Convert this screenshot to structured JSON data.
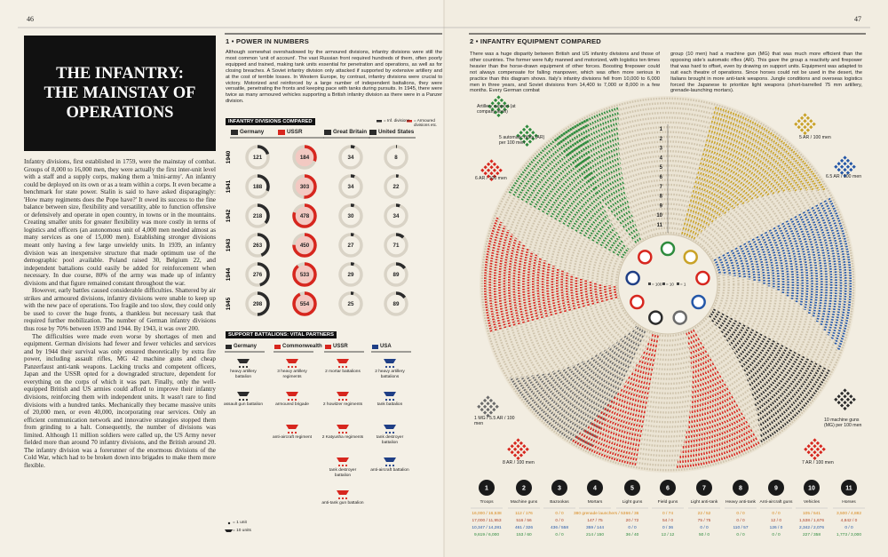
{
  "left_page": {
    "page_number": "46",
    "title": [
      "THE INFANTRY:",
      "THE MAINSTAY OF",
      "OPERATIONS"
    ],
    "body": [
      "Infantry divisions, first established in 1759, were the mainstay of combat. Groups of 8,000 to 16,000 men, they were actually the first inter-unit level with a staff and a supply corps, making them a 'mini-army'. An infantry could be deployed on its own or as a team within a corps. It even became a benchmark for state power. Stalin is said to have asked disparagingly: 'How many regiments does the Pope have?' It owed its success to the fine balance between size, flexibility and versatility, able to function offensive or defensively and operate in open country, in towns or in the mountains. Creating smaller units for greater flexibility was more costly in terms of logistics and officers (an autonomous unit of 4,000 men needed almost as many services as one of 15,000 men). Establishing stronger divisions meant only having a few large unwieldy units. In 1939, an infantry division was an inexpensive structure that made optimum use of the demographic pool available. Poland raised 30, Belgium 22, and independent battalions could easily be added for reinforcement when necessary. In due course, 80% of the army was made up of infantry divisions and that figure remained constant throughout the war.",
      "However, early battles caused considerable difficulties. Shattered by air strikes and armoured divisions, infantry divisions were unable to keep up with the new pace of operations. Too fragile and too slow, they could only be used to cover the huge fronts, a thankless but necessary task that required further mobilization. The number of German infantry divisions thus rose by 70% between 1939 and 1944. By 1943, it was over 200.",
      "The difficulties were made even worse by shortages of men and equipment. German divisions had fewer and fewer vehicles and services and by 1944 their survival was only ensured theoretically by extra fire power, including assault rifles, MG 42 machine guns and cheap Panzerfaust anti-tank weapons. Lacking trucks and competent officers, Japan and the USSR opted for a downgraded structure, dependent for everything on the corps of which it was part. Finally, only the well-equipped British and US armies could afford to improve their infantry divisions, reinforcing them with independent units. It wasn't rare to find divisions with a hundred tanks. Mechanically they became massive units of 20,000 men, or even 40,000, incorporating rear services. Only an efficient communication network and innovative strategies stopped them from grinding to a halt. Consequently, the number of divisions was limited. Although 11 million soldiers were called up, the US Army never fielded more than around 70 infantry divisions, and the British around 20. The infantry division was a forerunner of the enormous divisions of the Cold War, which had to be broken down into brigades to make them more flexible."
    ]
  },
  "power_in_numbers": {
    "heading": "1 • POWER IN NUMBERS",
    "text": "Although somewhat overshadowed by the armoured divisions, infantry divisions were still the most common 'unit of account'. The vast Russian front required hundreds of them, often poorly equipped and trained, making tank units essential for penetration and operations, as well as for closing breaches. A Soviet infantry division only attacked if supported by extensive artillery and at the cost of terrible losses. In Western Europe, by contrast, infantry divisions were crucial to victory. Motorized and reinforced by a large number of independent battalions, they were versatile, penetrating the fronts and keeping pace with tanks during pursuits. In 1945, there were twice as many armoured vehicles supporting a British infantry division as there were in a Panzer division.",
    "divisions": {
      "heading": "INFANTRY DIVISIONS COMPARED",
      "legend": [
        "= Inf. divisions",
        "= Armoured divisions etc."
      ],
      "countries": [
        "Germany",
        "USSR",
        "Great Britain",
        "United States"
      ],
      "colors": [
        "#2b2b2b",
        "#d7261e",
        "#2b2b2b",
        "#2b2b2b"
      ],
      "years": [
        "1940",
        "1941",
        "1942",
        "1943",
        "1944",
        "1945"
      ],
      "values": [
        [
          121,
          184,
          34,
          8
        ],
        [
          188,
          303,
          34,
          22
        ],
        [
          218,
          478,
          30,
          34
        ],
        [
          263,
          450,
          27,
          71
        ],
        [
          276,
          533,
          29,
          89
        ],
        [
          298,
          554,
          25,
          89
        ]
      ]
    }
  },
  "support": {
    "heading": "SUPPORT BATTALIONS: VITAL PARTNERS",
    "columns": [
      {
        "name": "Germany",
        "color": "#2b2b2b",
        "units": [
          "heavy artillery battalion",
          "assault gun battalion"
        ]
      },
      {
        "name": "Commonwealth",
        "color": "#d7261e",
        "units": [
          "3 heavy artillery regiments",
          "armoured brigade",
          "anti-aircraft regiment"
        ]
      },
      {
        "name": "USSR",
        "color": "#d7261e",
        "units": [
          "2 mortar battalions",
          "2 howitzer regiments",
          "2 Katyusha regiments",
          "tank destroyer battalion",
          "anti-tank gun battalion"
        ]
      },
      {
        "name": "USA",
        "color": "#1f3f86",
        "units": [
          "2 heavy artillery battalions",
          "tank battalion",
          "tank destroyer battalion",
          "anti-aircraft battalion"
        ]
      }
    ],
    "legend": [
      "= 1 unit",
      "= 10 units"
    ]
  },
  "right_page": {
    "page_number": "47",
    "heading": "2 • INFANTRY EQUIPMENT COMPARED",
    "text": [
      "There was a huge disparity between British and US infantry divisions and those of other countries. The former were fully manned and motorized, with logistics ten times heavier than the horse-drawn equipment of other forces. Boosting firepower could not always compensate for falling manpower, which was often more serious in practice than this diagram shows. Italy's infantry divisions fell from 10,000 to 6,000 men in three years, and Soviet divisions from 14,400 to 7,000 or 8,000 in a few months. Every German combat",
      "group (10 men) had a machine gun (MG) that was much more efficient than the opposing side's automatic rifles (AR). This gave the group a reactivity and firepower that was hard to offset, even by drawing on support units. Equipment was adapted to suit each theatre of operations. Since horses could not be used in the desert, the Italians brought in more anti-tank weapons. Jungle conditions and overseas logistics forced the Japanese to prioritize light weapons (short-barrelled 75 mm artillery, grenade-launching mortars)."
    ],
    "diagram": {
      "sectors": [
        {
          "label": "Artillery support (at company level)",
          "color": "#2e8b3d"
        },
        {
          "label": "5 automatic rifles (AR) per 100 men",
          "color": "#2e8b3d"
        },
        {
          "label": "6 AR / 100 men",
          "color": "#d7261e"
        },
        {
          "label": "5 AR / 100 men",
          "color": "#c9a227"
        },
        {
          "label": "6.5 AR / 100 men",
          "color": "#2457a8"
        },
        {
          "label": "1 MG / 5.5 AR / 100 men",
          "color": "#6b6b6b"
        },
        {
          "label": "10 machine guns (MG) per 100 men",
          "color": "#2b2b2b"
        },
        {
          "label": "8 AR / 100 men",
          "color": "#d7261e"
        },
        {
          "label": "7 AR / 100 men",
          "color": "#d7261e"
        }
      ],
      "rings": [
        "1",
        "2",
        "3",
        "4",
        "5",
        "6",
        "7",
        "8",
        "9",
        "10",
        "11"
      ],
      "center_legend": [
        "= 100",
        "= 10",
        "= 1"
      ]
    },
    "equipment": {
      "row_colors": [
        "#d98a1f",
        "#b0442c",
        "#2457a8",
        "#2e8b3d"
      ],
      "items": [
        {
          "number": "1",
          "label": "Troops",
          "figures": [
            "16,000 / 16,538",
            "17,000 / 11,953",
            "10,347 / 14,281",
            "9,619 / 6,000"
          ]
        },
        {
          "number": "2",
          "label": "Machine guns",
          "figures": [
            "112 / 176",
            "516 / 56",
            "461 / 326",
            "153 / 60"
          ]
        },
        {
          "number": "3",
          "label": "Bazookas",
          "figures": [
            "0 / 0",
            "0 / 0",
            "436 / 558",
            "0 / 0"
          ]
        },
        {
          "number": "4",
          "label": "Mortars",
          "figures": [
            "380 grenade launchers / 53",
            "147 / 75",
            "359 / 144",
            "214 / 150"
          ]
        },
        {
          "number": "5",
          "label": "Light guns",
          "figures": [
            "66 / 36",
            "20 / 72",
            "0 / 0",
            "36 / 40"
          ]
        },
        {
          "number": "6",
          "label": "Field guns",
          "figures": [
            "0 / 74",
            "54 / 0",
            "0 / 36",
            "12 / 12"
          ]
        },
        {
          "number": "7",
          "label": "Light anti-tank",
          "figures": [
            "22 / 52",
            "75 / 75",
            "0 / 0",
            "50 / 0"
          ]
        },
        {
          "number": "8",
          "label": "Heavy anti-tank",
          "figures": [
            "0 / 0",
            "0 / 0",
            "110 / 57",
            "0 / 0"
          ]
        },
        {
          "number": "9",
          "label": "Anti-aircraft guns",
          "figures": [
            "0 / 0",
            "12 / 0",
            "126 / 0",
            "0 / 0"
          ]
        },
        {
          "number": "10",
          "label": "Vehicles",
          "figures": [
            "105 / 541",
            "1,538 / 1,676",
            "2,342 / 2,076",
            "227 / 358"
          ]
        },
        {
          "number": "11",
          "label": "Horses",
          "figures": [
            "3,500 / 4,882",
            "4,842 / 0",
            "0 / 0",
            "1,773 / 3,000"
          ]
        }
      ]
    }
  }
}
